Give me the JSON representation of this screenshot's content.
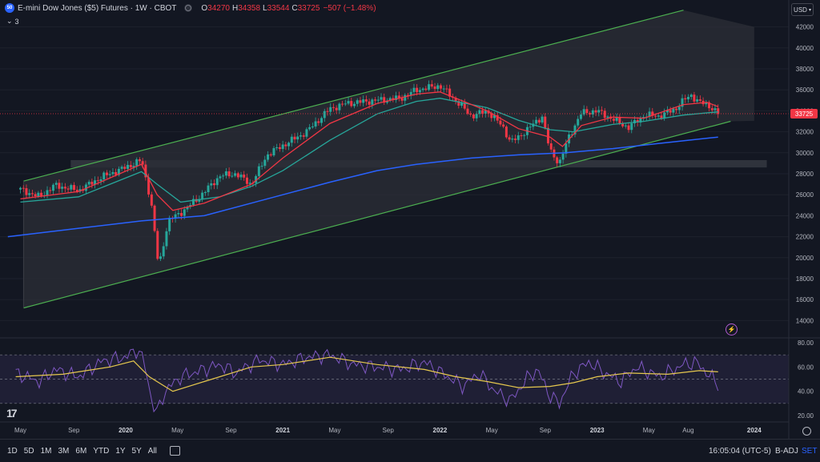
{
  "header": {
    "symbol_badge": "50",
    "title": "E-mini Dow Jones ($5) Futures · 1W · CBOT",
    "ohlc": [
      {
        "k": "O",
        "v": "34270"
      },
      {
        "k": "H",
        "v": "34358"
      },
      {
        "k": "L",
        "v": "33544"
      },
      {
        "k": "C",
        "v": "33725"
      },
      {
        "k": "",
        "v": "−507 (−1.48%)"
      }
    ],
    "layers_count": "3"
  },
  "currency": "USD",
  "colors": {
    "bg": "#131722",
    "up": "#26a69a",
    "down": "#f23645",
    "ema_fast": "#f23645",
    "ema_mid": "#26a69a",
    "sma_long": "#2962ff",
    "channel": "#4caf50",
    "rsi": "#7e57c2",
    "rsi_ma": "#e6c84e"
  },
  "chart_data": [
    {
      "type": "candlestick",
      "title": "E-mini Dow Jones ($5) Futures · 1W · CBOT",
      "ylim": [
        12500,
        43500
      ],
      "y_ticks": [
        14000,
        16000,
        18000,
        20000,
        22000,
        24000,
        26000,
        28000,
        30000,
        32000,
        34000,
        36000,
        38000,
        40000,
        42000
      ],
      "x_ticks": [
        "May",
        "Sep",
        "2020",
        "May",
        "Sep",
        "2021",
        "May",
        "Sep",
        "2022",
        "May",
        "Sep",
        "2023",
        "May",
        "Aug",
        "2024"
      ],
      "last_price": 33725,
      "price_path": [
        [
          2019.33,
          26500
        ],
        [
          2019.45,
          25800
        ],
        [
          2019.55,
          26900
        ],
        [
          2019.7,
          26400
        ],
        [
          2019.85,
          27700
        ],
        [
          2020.0,
          28600
        ],
        [
          2020.1,
          29300
        ],
        [
          2020.16,
          25500
        ],
        [
          2020.21,
          19000
        ],
        [
          2020.27,
          23500
        ],
        [
          2020.37,
          24500
        ],
        [
          2020.47,
          25800
        ],
        [
          2020.6,
          27800
        ],
        [
          2020.7,
          28000
        ],
        [
          2020.8,
          27000
        ],
        [
          2020.9,
          29800
        ],
        [
          2021.0,
          30700
        ],
        [
          2021.15,
          32000
        ],
        [
          2021.3,
          34200
        ],
        [
          2021.4,
          34700
        ],
        [
          2021.6,
          35000
        ],
        [
          2021.75,
          35200
        ],
        [
          2021.85,
          36000
        ],
        [
          2022.0,
          36400
        ],
        [
          2022.1,
          35000
        ],
        [
          2022.2,
          33500
        ],
        [
          2022.3,
          34000
        ],
        [
          2022.4,
          32500
        ],
        [
          2022.45,
          31000
        ],
        [
          2022.5,
          31500
        ],
        [
          2022.6,
          32800
        ],
        [
          2022.65,
          33500
        ],
        [
          2022.7,
          30200
        ],
        [
          2022.76,
          29000
        ],
        [
          2022.82,
          31500
        ],
        [
          2022.9,
          33800
        ],
        [
          2023.0,
          34000
        ],
        [
          2023.1,
          33200
        ],
        [
          2023.2,
          32400
        ],
        [
          2023.3,
          33600
        ],
        [
          2023.4,
          33500
        ],
        [
          2023.5,
          34200
        ],
        [
          2023.55,
          35000
        ],
        [
          2023.6,
          35500
        ],
        [
          2023.65,
          34800
        ],
        [
          2023.7,
          34600
        ],
        [
          2023.73,
          34300
        ],
        [
          2023.77,
          33725
        ]
      ],
      "ema_fast": [
        [
          2019.33,
          25600
        ],
        [
          2019.7,
          26300
        ],
        [
          2020.1,
          28900
        ],
        [
          2020.2,
          26000
        ],
        [
          2020.3,
          24500
        ],
        [
          2020.5,
          25200
        ],
        [
          2020.8,
          27000
        ],
        [
          2021.0,
          29500
        ],
        [
          2021.3,
          32800
        ],
        [
          2021.6,
          34700
        ],
        [
          2021.85,
          35600
        ],
        [
          2022.0,
          35800
        ],
        [
          2022.3,
          34000
        ],
        [
          2022.5,
          32300
        ],
        [
          2022.7,
          31500
        ],
        [
          2022.78,
          30600
        ],
        [
          2022.9,
          32600
        ],
        [
          2023.1,
          33400
        ],
        [
          2023.3,
          33300
        ],
        [
          2023.55,
          34600
        ],
        [
          2023.7,
          34800
        ],
        [
          2023.77,
          34400
        ]
      ],
      "ema_mid": [
        [
          2019.33,
          25300
        ],
        [
          2019.7,
          25800
        ],
        [
          2020.1,
          28200
        ],
        [
          2020.2,
          27000
        ],
        [
          2020.35,
          25300
        ],
        [
          2020.6,
          25800
        ],
        [
          2020.8,
          26800
        ],
        [
          2021.0,
          28300
        ],
        [
          2021.3,
          31200
        ],
        [
          2021.6,
          33700
        ],
        [
          2021.85,
          34900
        ],
        [
          2022.0,
          35200
        ],
        [
          2022.3,
          34300
        ],
        [
          2022.5,
          33100
        ],
        [
          2022.7,
          32200
        ],
        [
          2022.85,
          32000
        ],
        [
          2023.1,
          32700
        ],
        [
          2023.3,
          33000
        ],
        [
          2023.55,
          33600
        ],
        [
          2023.77,
          33900
        ]
      ],
      "sma_long": [
        [
          2019.25,
          22000
        ],
        [
          2019.7,
          22800
        ],
        [
          2020.1,
          23500
        ],
        [
          2020.5,
          24000
        ],
        [
          2020.8,
          25200
        ],
        [
          2021.0,
          26000
        ],
        [
          2021.3,
          27200
        ],
        [
          2021.6,
          28300
        ],
        [
          2021.85,
          28900
        ],
        [
          2022.2,
          29500
        ],
        [
          2022.5,
          29800
        ],
        [
          2022.8,
          30000
        ],
        [
          2023.1,
          30400
        ],
        [
          2023.4,
          30900
        ],
        [
          2023.77,
          31500
        ]
      ],
      "channel_upper": [
        [
          2019.35,
          27300
        ],
        [
          2023.55,
          43600
        ]
      ],
      "channel_lower": [
        [
          2019.35,
          15200
        ],
        [
          2023.85,
          33000
        ]
      ],
      "support_zone": [
        28600,
        29300
      ]
    },
    {
      "type": "line",
      "title": "RSI",
      "ylim": [
        18,
        82
      ],
      "y_ticks": [
        20,
        40,
        60,
        80
      ],
      "tick_labels": [
        "20.00",
        "40.00",
        "60.00",
        "80.00"
      ],
      "bands": [
        30,
        50,
        70
      ],
      "rsi": [
        [
          2019.3,
          55
        ],
        [
          2019.45,
          48
        ],
        [
          2019.55,
          58
        ],
        [
          2019.7,
          52
        ],
        [
          2019.85,
          65
        ],
        [
          2020.0,
          68
        ],
        [
          2020.08,
          75
        ],
        [
          2020.12,
          62
        ],
        [
          2020.17,
          30
        ],
        [
          2020.2,
          22
        ],
        [
          2020.25,
          40
        ],
        [
          2020.35,
          52
        ],
        [
          2020.5,
          58
        ],
        [
          2020.6,
          62
        ],
        [
          2020.7,
          55
        ],
        [
          2020.85,
          66
        ],
        [
          2021.0,
          62
        ],
        [
          2021.15,
          68
        ],
        [
          2021.3,
          70
        ],
        [
          2021.45,
          62
        ],
        [
          2021.6,
          60
        ],
        [
          2021.75,
          58
        ],
        [
          2021.9,
          64
        ],
        [
          2022.05,
          52
        ],
        [
          2022.15,
          44
        ],
        [
          2022.25,
          55
        ],
        [
          2022.35,
          40
        ],
        [
          2022.45,
          32
        ],
        [
          2022.55,
          50
        ],
        [
          2022.62,
          58
        ],
        [
          2022.7,
          36
        ],
        [
          2022.76,
          30
        ],
        [
          2022.85,
          55
        ],
        [
          2022.95,
          64
        ],
        [
          2023.05,
          55
        ],
        [
          2023.15,
          48
        ],
        [
          2023.25,
          60
        ],
        [
          2023.4,
          52
        ],
        [
          2023.55,
          62
        ],
        [
          2023.63,
          64
        ],
        [
          2023.7,
          55
        ],
        [
          2023.77,
          46
        ]
      ],
      "rsi_ma": [
        [
          2019.3,
          52
        ],
        [
          2019.6,
          54
        ],
        [
          2019.9,
          60
        ],
        [
          2020.05,
          65
        ],
        [
          2020.15,
          52
        ],
        [
          2020.3,
          40
        ],
        [
          2020.5,
          48
        ],
        [
          2020.8,
          60
        ],
        [
          2021.0,
          62
        ],
        [
          2021.3,
          68
        ],
        [
          2021.6,
          62
        ],
        [
          2021.9,
          58
        ],
        [
          2022.1,
          52
        ],
        [
          2022.3,
          48
        ],
        [
          2022.5,
          43
        ],
        [
          2022.7,
          44
        ],
        [
          2022.85,
          47
        ],
        [
          2023.0,
          52
        ],
        [
          2023.2,
          55
        ],
        [
          2023.45,
          54
        ],
        [
          2023.65,
          57
        ],
        [
          2023.77,
          56
        ]
      ]
    }
  ],
  "time_ranges": [
    "1D",
    "5D",
    "1M",
    "3M",
    "6M",
    "YTD",
    "1Y",
    "5Y",
    "All"
  ],
  "footer": {
    "clock": "16:05:04 (UTC-5)",
    "badj": "B-ADJ",
    "set": "SET"
  }
}
